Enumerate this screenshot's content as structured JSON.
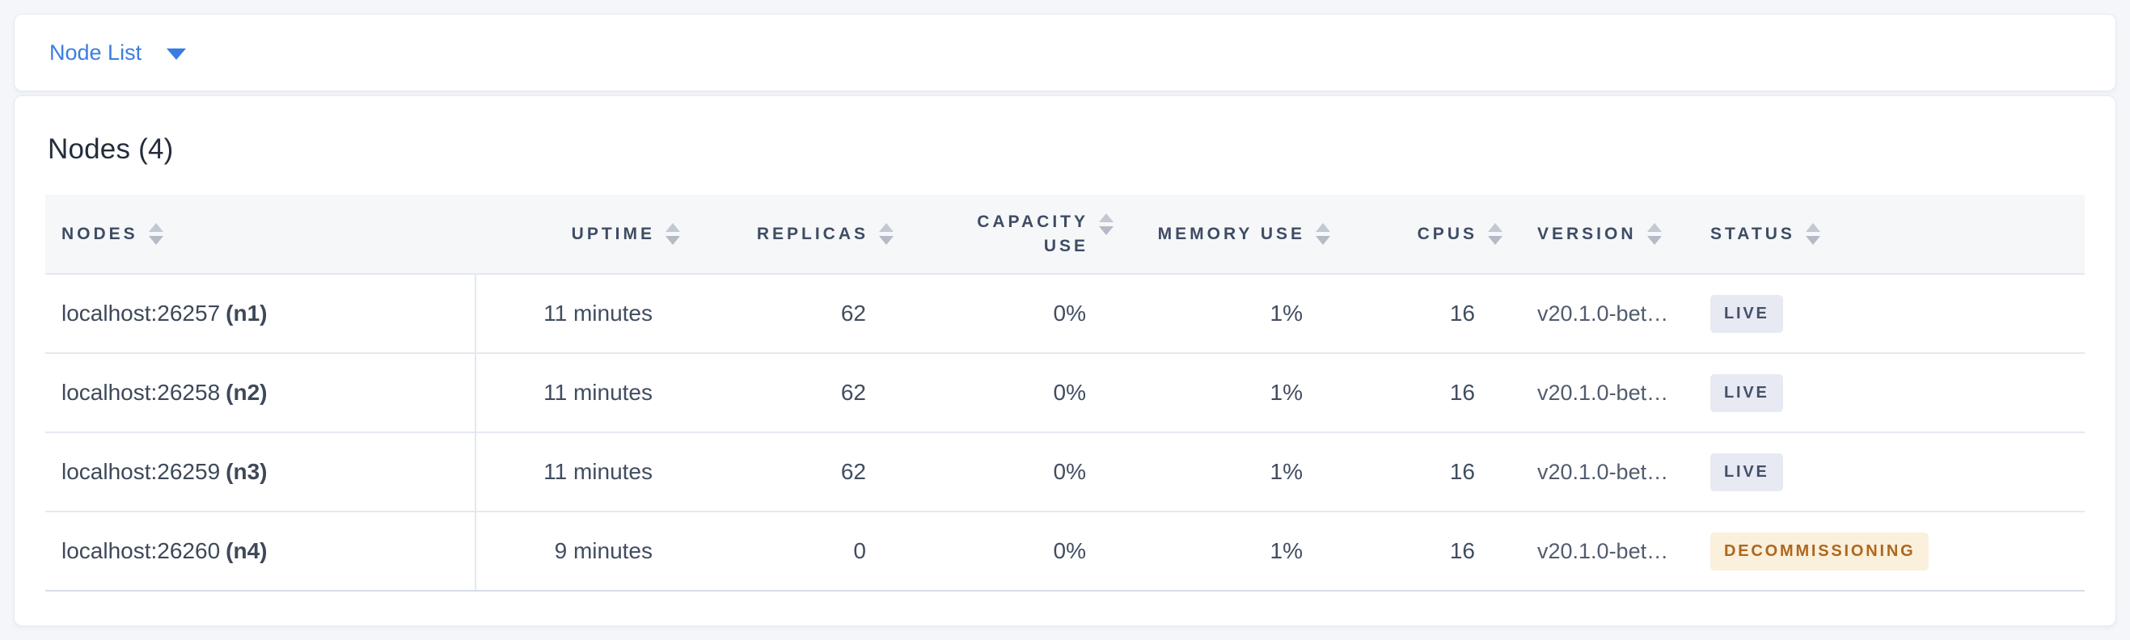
{
  "selector": {
    "label": "Node List"
  },
  "panel": {
    "title": "Nodes (4)"
  },
  "colors": {
    "accent_blue": "#3A7DE2",
    "page_background": "#F4F6FA",
    "header_background": "#F6F7F9",
    "header_text": "#3E4C63",
    "row_border": "#E4E8F0",
    "badge_live_bg": "#E7EAF2",
    "badge_live_text": "#44506A",
    "badge_decommissioning_bg": "#FAF0DC",
    "badge_decommissioning_text": "#AE671B"
  },
  "icons": {
    "dropdown_caret": "chevron-down",
    "sort": "sort-arrows"
  },
  "table": {
    "columns": [
      {
        "label": "NODES",
        "align": "left"
      },
      {
        "label": "UPTIME",
        "align": "right"
      },
      {
        "label": "REPLICAS",
        "align": "right"
      },
      {
        "label": "CAPACITY USE",
        "align": "right"
      },
      {
        "label": "MEMORY USE",
        "align": "right"
      },
      {
        "label": "CPUS",
        "align": "right"
      },
      {
        "label": "VERSION",
        "align": "left"
      },
      {
        "label": "STATUS",
        "align": "left"
      }
    ],
    "rows": [
      {
        "node": "localhost:26257",
        "id": "(n1)",
        "uptime": "11 minutes",
        "replicas": "62",
        "capacity_use": "0%",
        "memory_use": "1%",
        "cpus": "16",
        "version": "v20.1.0-bet…",
        "status": "LIVE"
      },
      {
        "node": "localhost:26258",
        "id": "(n2)",
        "uptime": "11 minutes",
        "replicas": "62",
        "capacity_use": "0%",
        "memory_use": "1%",
        "cpus": "16",
        "version": "v20.1.0-bet…",
        "status": "LIVE"
      },
      {
        "node": "localhost:26259",
        "id": "(n3)",
        "uptime": "11 minutes",
        "replicas": "62",
        "capacity_use": "0%",
        "memory_use": "1%",
        "cpus": "16",
        "version": "v20.1.0-bet…",
        "status": "LIVE"
      },
      {
        "node": "localhost:26260",
        "id": "(n4)",
        "uptime": "9 minutes",
        "replicas": "0",
        "capacity_use": "0%",
        "memory_use": "1%",
        "cpus": "16",
        "version": "v20.1.0-bet…",
        "status": "DECOMMISSIONING"
      }
    ]
  }
}
